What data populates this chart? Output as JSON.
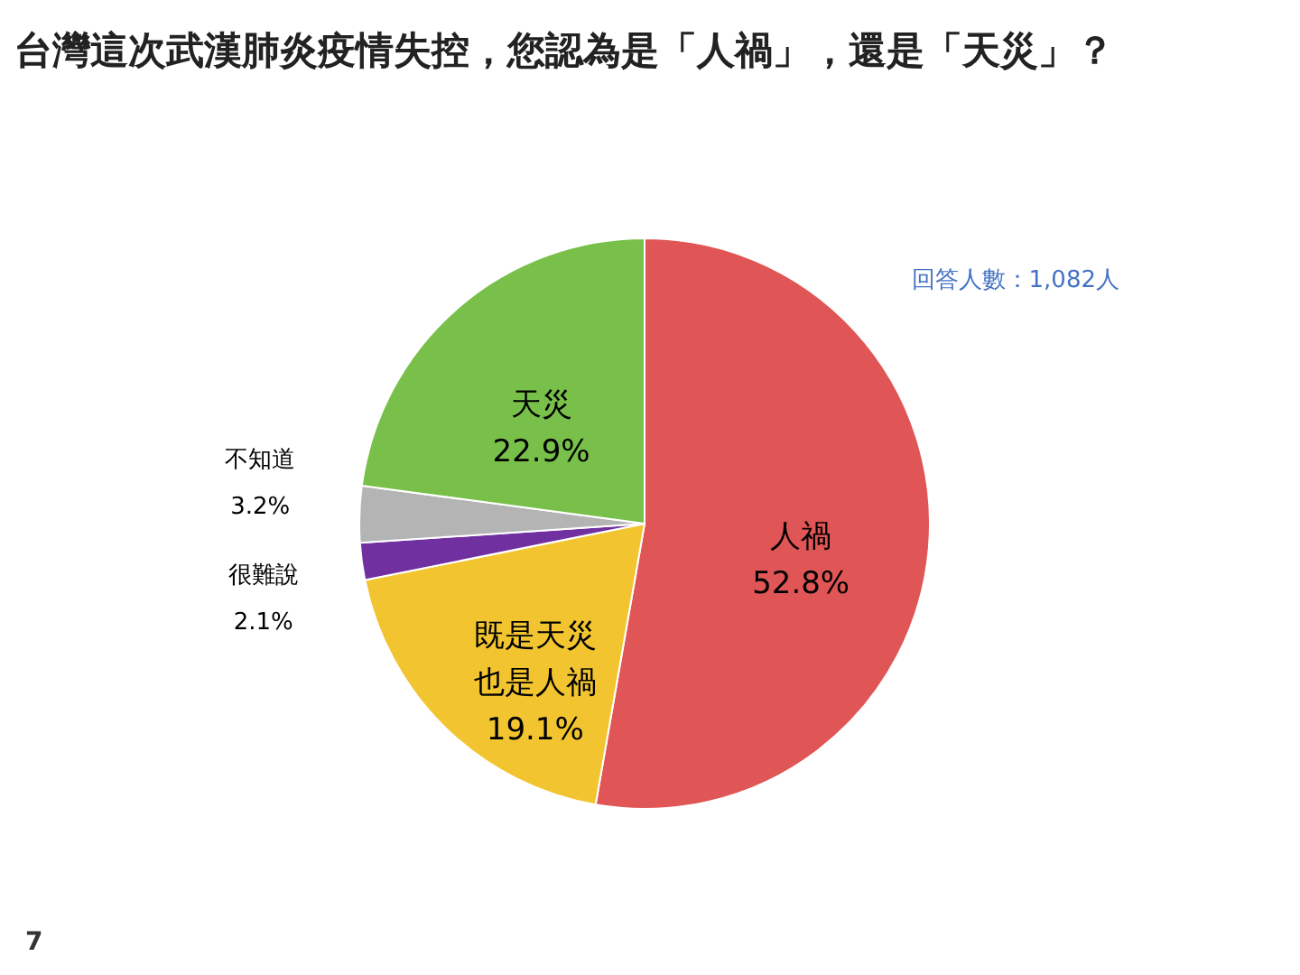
{
  "chart_data": {
    "type": "pie",
    "title": "台灣這次武漢肺炎疫情失控，您認為是「人禍」，還是「天災」？",
    "categories": [
      "人禍",
      "既是天災也是人禍",
      "很難說",
      "不知道",
      "天災"
    ],
    "values": [
      52.8,
      19.1,
      2.1,
      3.2,
      22.9
    ],
    "colors": [
      "#e05555",
      "#f2c530",
      "#7030a0",
      "#b4b4b4",
      "#78c04a"
    ],
    "value_labels": [
      "52.8%",
      "19.1%",
      "2.1%",
      "3.2%",
      "22.9%"
    ],
    "annotations": [
      "回答人數：1,082人",
      "7"
    ]
  }
}
